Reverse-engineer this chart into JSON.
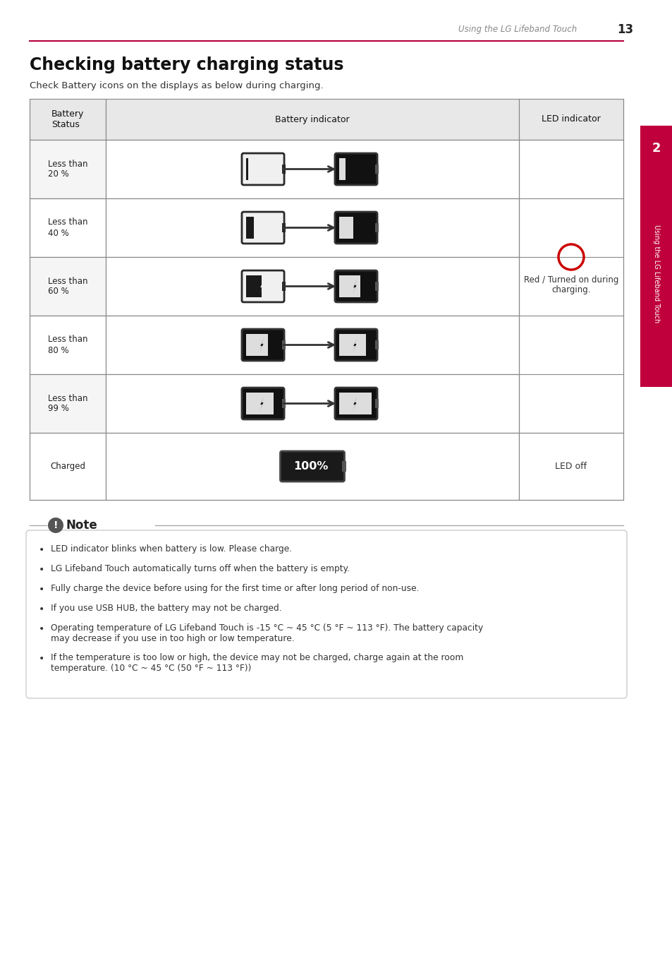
{
  "page_header": "Using the LG Lifeband Touch",
  "page_number": "13",
  "header_line_color": "#b5003a",
  "title": "Checking battery charging status",
  "subtitle": "Check Battery icons on the displays as below during charging.",
  "sidebar_color": "#c0003c",
  "sidebar_text": "Using the LG Lifeband Touch",
  "sidebar_number": "2",
  "table_header_bg": "#e5e5e5",
  "table_border_color": "#888888",
  "col1_header": "Battery\nStatus",
  "col2_header": "Battery indicator",
  "col3_header": "LED indicator",
  "rows": [
    {
      "status": "Less than\n20 %",
      "fill1": 0.05,
      "fill2": 0.18,
      "dark1": false,
      "dark2": true
    },
    {
      "status": "Less than\n40 %",
      "fill1": 0.22,
      "fill2": 0.42,
      "dark1": false,
      "dark2": true
    },
    {
      "status": "Less than\n60 %",
      "fill1": 0.45,
      "fill2": 0.62,
      "dark1": false,
      "dark2": true
    },
    {
      "status": "Less than\n80 %",
      "fill1": 0.65,
      "fill2": 0.8,
      "dark1": true,
      "dark2": true
    },
    {
      "status": "Less than\n99 %",
      "fill1": 0.82,
      "fill2": 0.97,
      "dark1": true,
      "dark2": true
    },
    {
      "status": "Charged"
    }
  ],
  "led_circle_color": "#cc0000",
  "led_text_line1": "Red / Turned on during",
  "led_text_line2": "charging.",
  "charged_led_text": "LED off",
  "note_title": "Note",
  "note_icon_color": "#555555",
  "note_bullets": [
    "LED indicator blinks when battery is low. Please charge.",
    "LG Lifeband Touch automatically turns off when the battery is empty.",
    "Fully charge the device before using for the first time or after long period of non-use.",
    "If you use USB HUB, the battery may not be charged.",
    "Operating temperature of LG Lifeband Touch is -15 °C ~ 45 °C (5 °F ~ 113 °F). The battery capacity\nmay decrease if you use in too high or low temperature.",
    "If the temperature is too low or high, the device may not be charged, charge again at the room\ntemperature. (10 °C ~ 45 °C (50 °F ~ 113 °F))"
  ]
}
